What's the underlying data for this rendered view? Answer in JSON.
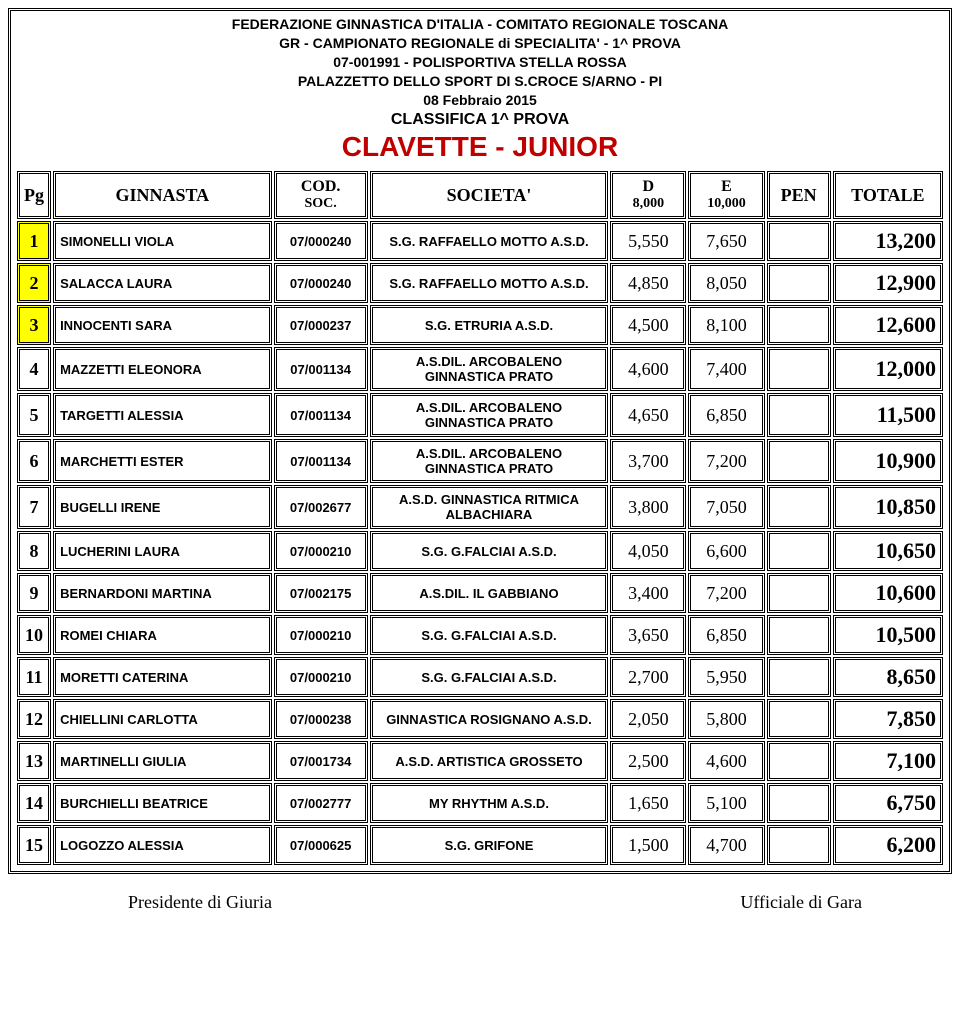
{
  "header": {
    "lines": [
      "FEDERAZIONE GINNASTICA D'ITALIA - COMITATO REGIONALE TOSCANA",
      "GR - CAMPIONATO REGIONALE di SPECIALITA' - 1^ PROVA",
      "07-001991 - POLISPORTIVA STELLA ROSSA",
      "PALAZZETTO DELLO SPORT DI S.CROCE S/ARNO - PI",
      "08 Febbraio 2015"
    ],
    "subtitle": "CLASSIFICA 1^ PROVA",
    "title": "CLAVETTE - JUNIOR",
    "title_color": "#c00000"
  },
  "columns": {
    "pg": "Pg",
    "ginnasta": "GINNASTA",
    "cod_l1": "COD.",
    "cod_l2": "SOC.",
    "societa": "SOCIETA'",
    "d_l1": "D",
    "d_l2": "8,000",
    "e_l1": "E",
    "e_l2": "10,000",
    "pen": "PEN",
    "totale": "TOTALE"
  },
  "col_widths": {
    "pg": 34,
    "name": 218,
    "code": 94,
    "soc": 238,
    "d": 76,
    "e": 76,
    "pen": 64,
    "tot": 110
  },
  "colors": {
    "highlight_bg": "#ffff00",
    "text": "#000000",
    "title": "#c00000",
    "background": "#ffffff"
  },
  "rows": [
    {
      "pg": "1",
      "name": "SIMONELLI VIOLA",
      "code": "07/000240",
      "soc": "S.G. RAFFAELLO MOTTO A.S.D.",
      "d": "5,550",
      "e": "7,650",
      "pen": "",
      "tot": "13,200",
      "hl": true
    },
    {
      "pg": "2",
      "name": "SALACCA LAURA",
      "code": "07/000240",
      "soc": "S.G. RAFFAELLO MOTTO A.S.D.",
      "d": "4,850",
      "e": "8,050",
      "pen": "",
      "tot": "12,900",
      "hl": true
    },
    {
      "pg": "3",
      "name": "INNOCENTI SARA",
      "code": "07/000237",
      "soc": "S.G. ETRURIA A.S.D.",
      "d": "4,500",
      "e": "8,100",
      "pen": "",
      "tot": "12,600",
      "hl": true
    },
    {
      "pg": "4",
      "name": "MAZZETTI ELEONORA",
      "code": "07/001134",
      "soc": "A.S.DIL. ARCOBALENO GINNASTICA PRATO",
      "d": "4,600",
      "e": "7,400",
      "pen": "",
      "tot": "12,000"
    },
    {
      "pg": "5",
      "name": "TARGETTI ALESSIA",
      "code": "07/001134",
      "soc": "A.S.DIL. ARCOBALENO GINNASTICA PRATO",
      "d": "4,650",
      "e": "6,850",
      "pen": "",
      "tot": "11,500"
    },
    {
      "pg": "6",
      "name": "MARCHETTI ESTER",
      "code": "07/001134",
      "soc": "A.S.DIL. ARCOBALENO GINNASTICA PRATO",
      "d": "3,700",
      "e": "7,200",
      "pen": "",
      "tot": "10,900"
    },
    {
      "pg": "7",
      "name": "BUGELLI IRENE",
      "code": "07/002677",
      "soc": "A.S.D. GINNASTICA RITMICA ALBACHIARA",
      "d": "3,800",
      "e": "7,050",
      "pen": "",
      "tot": "10,850"
    },
    {
      "pg": "8",
      "name": "LUCHERINI LAURA",
      "code": "07/000210",
      "soc": "S.G. G.FALCIAI A.S.D.",
      "d": "4,050",
      "e": "6,600",
      "pen": "",
      "tot": "10,650"
    },
    {
      "pg": "9",
      "name": "BERNARDONI MARTINA",
      "code": "07/002175",
      "soc": "A.S.DIL. IL GABBIANO",
      "d": "3,400",
      "e": "7,200",
      "pen": "",
      "tot": "10,600"
    },
    {
      "pg": "10",
      "name": "ROMEI CHIARA",
      "code": "07/000210",
      "soc": "S.G. G.FALCIAI A.S.D.",
      "d": "3,650",
      "e": "6,850",
      "pen": "",
      "tot": "10,500"
    },
    {
      "pg": "11",
      "name": "MORETTI CATERINA",
      "code": "07/000210",
      "soc": "S.G. G.FALCIAI A.S.D.",
      "d": "2,700",
      "e": "5,950",
      "pen": "",
      "tot": "8,650"
    },
    {
      "pg": "12",
      "name": "CHIELLINI CARLOTTA",
      "code": "07/000238",
      "soc": "GINNASTICA ROSIGNANO A.S.D.",
      "d": "2,050",
      "e": "5,800",
      "pen": "",
      "tot": "7,850"
    },
    {
      "pg": "13",
      "name": "MARTINELLI GIULIA",
      "code": "07/001734",
      "soc": "A.S.D. ARTISTICA GROSSETO",
      "d": "2,500",
      "e": "4,600",
      "pen": "",
      "tot": "7,100"
    },
    {
      "pg": "14",
      "name": "BURCHIELLI BEATRICE",
      "code": "07/002777",
      "soc": "MY RHYTHM A.S.D.",
      "d": "1,650",
      "e": "5,100",
      "pen": "",
      "tot": "6,750"
    },
    {
      "pg": "15",
      "name": "LOGOZZO ALESSIA",
      "code": "07/000625",
      "soc": "S.G. GRIFONE",
      "d": "1,500",
      "e": "4,700",
      "pen": "",
      "tot": "6,200"
    }
  ],
  "footer": {
    "left": "Presidente di Giuria",
    "right": "Ufficiale di Gara"
  }
}
